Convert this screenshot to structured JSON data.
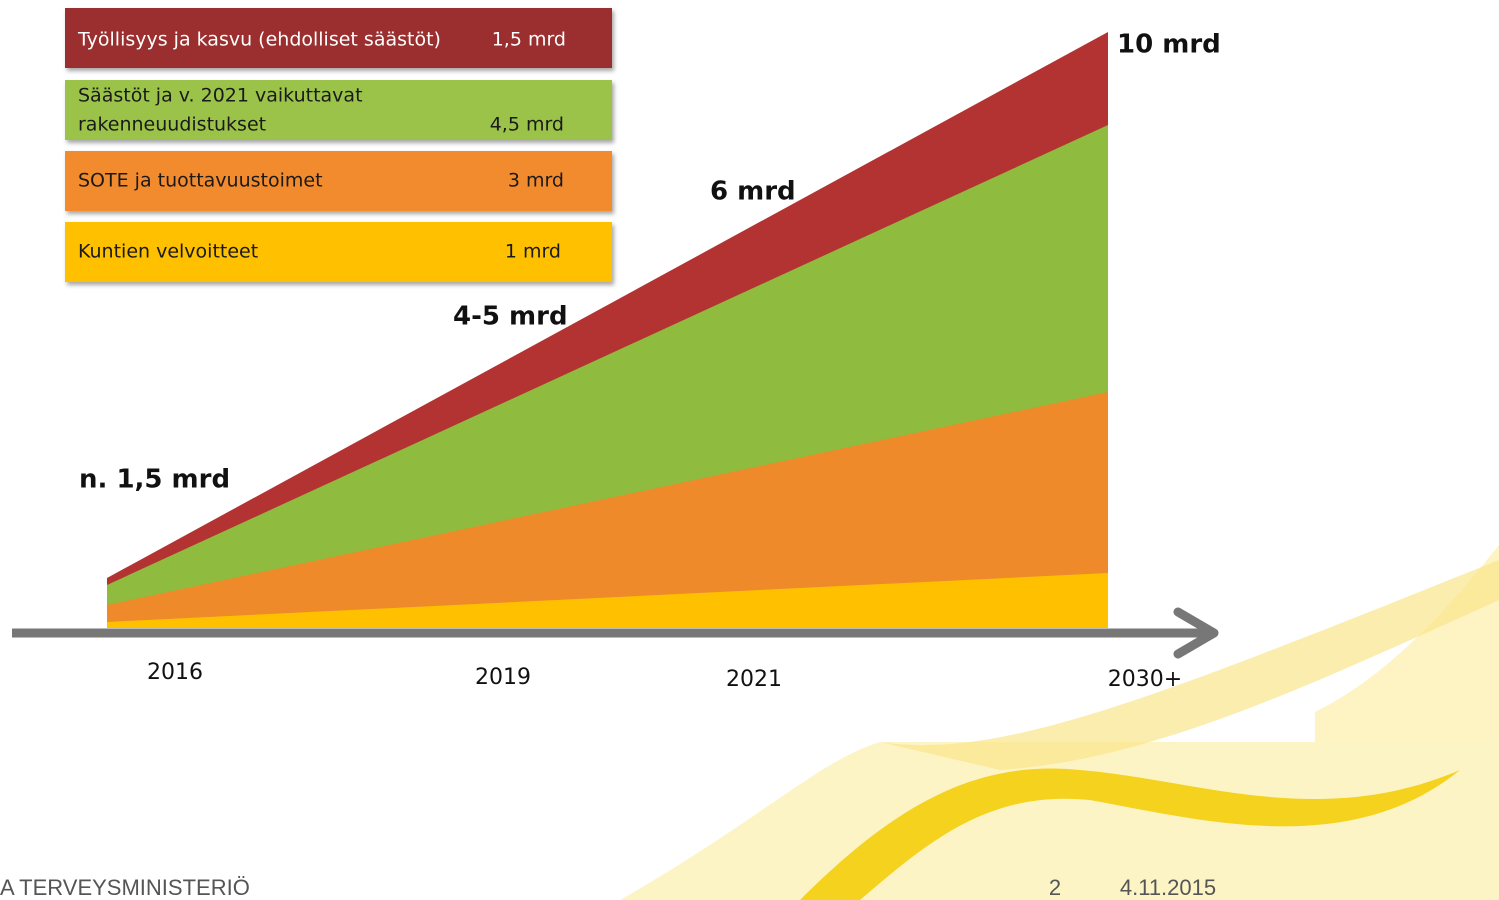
{
  "legend": [
    {
      "lines": [
        "Työllisyys ja kasvu  (ehdolliset säästöt)"
      ],
      "amount": "1,5 mrd"
    },
    {
      "lines": [
        "Säästöt ja v. 2021 vaikuttavat",
        "rakenneuudistukset"
      ],
      "amount": "4,5 mrd"
    },
    {
      "lines": [
        "SOTE ja tuottavuustoimet"
      ],
      "amount": "3 mrd"
    },
    {
      "lines": [
        "Kuntien velvoitteet"
      ],
      "amount": "1 mrd"
    }
  ],
  "annotations": [
    "10 mrd",
    "6 mrd",
    "4-5 mrd",
    "n. 1,5 mrd"
  ],
  "timeline": [
    "2016",
    "2019",
    "2021",
    "2030+"
  ],
  "footer": {
    "organization": "A TERVEYSMINISTERIÖ",
    "page": "2",
    "date": "4.11.2015"
  }
}
